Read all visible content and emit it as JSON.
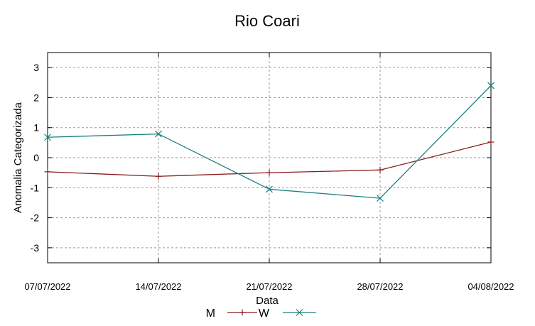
{
  "chart_data": {
    "type": "line",
    "title": "Rio Coari",
    "xlabel": "Data",
    "ylabel": "Anomalia Categorizada",
    "x": [
      "07/07/2022",
      "14/07/2022",
      "21/07/2022",
      "28/07/2022",
      "04/08/2022"
    ],
    "ylim": [
      -3.5,
      3.5
    ],
    "yticks": [
      -3,
      -2,
      -1,
      0,
      1,
      2,
      3
    ],
    "grid": true,
    "legend_position": "bottom-center",
    "series": [
      {
        "name": "M",
        "color": "#8b1a1a",
        "marker": "plus",
        "values": [
          -0.47,
          -0.62,
          -0.5,
          -0.41,
          0.52
        ]
      },
      {
        "name": "W",
        "color": "#1a7f80",
        "marker": "x",
        "values": [
          0.68,
          0.79,
          -1.05,
          -1.35,
          2.4
        ]
      }
    ]
  }
}
